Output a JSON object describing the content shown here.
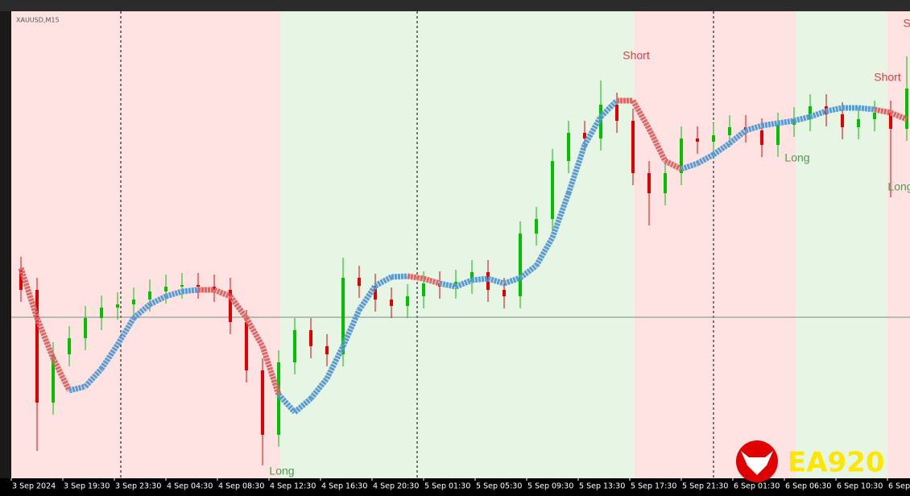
{
  "chart_data": {
    "type": "candlestick",
    "symbol": "XAUUSD,M15",
    "logo": "EA920",
    "xlim": [
      0,
      279
    ],
    "ylim": [
      0,
      116
    ],
    "xticks": [
      {
        "value": 0,
        "label": "3 Sep 2024"
      },
      {
        "value": 16,
        "label": "3 Sep 19:30"
      },
      {
        "value": 32,
        "label": "3 Sep 23:30"
      },
      {
        "value": 48,
        "label": "4 Sep 04:30"
      },
      {
        "value": 64,
        "label": "4 Sep 08:30"
      },
      {
        "value": 80,
        "label": "4 Sep 12:30"
      },
      {
        "value": 96,
        "label": "4 Sep 16:30"
      },
      {
        "value": 112,
        "label": "4 Sep 20:30"
      },
      {
        "value": 128,
        "label": "5 Sep 01:30"
      },
      {
        "value": 144,
        "label": "5 Sep 05:30"
      },
      {
        "value": 160,
        "label": "5 Sep 09:30"
      },
      {
        "value": 176,
        "label": "5 Sep 13:30"
      },
      {
        "value": 192,
        "label": "5 Sep 17:30"
      },
      {
        "value": 208,
        "label": "5 Sep 21:30"
      },
      {
        "value": 224,
        "label": "6 Sep 01:30"
      },
      {
        "value": 240,
        "label": "6 Sep 06:30"
      },
      {
        "value": 256,
        "label": "6 Sep 10:30"
      },
      {
        "value": 272,
        "label": "6 Sep"
      }
    ],
    "separators": [
      34,
      126,
      218
    ],
    "hline": 40,
    "zones": [
      {
        "from": 0,
        "to": 83.5,
        "color": "#ffe3e3"
      },
      {
        "from": 83.5,
        "to": 193.5,
        "color": "#e6f5e4"
      },
      {
        "from": 193.5,
        "to": 243.5,
        "color": "#ffe3e3"
      },
      {
        "from": 243.5,
        "to": 272,
        "color": "#e6f5e4"
      },
      {
        "from": 272,
        "to": 279,
        "color": "#ffe3e3"
      }
    ],
    "up_color": "#00c000",
    "down_color": "#e00000",
    "x": [
      3,
      8,
      13,
      18,
      23,
      28,
      33,
      38,
      43,
      48,
      53,
      58,
      63,
      68,
      73,
      78,
      83,
      88,
      93,
      98,
      103,
      108,
      113,
      118,
      123,
      128,
      133,
      138,
      143,
      148,
      153,
      158,
      163,
      168,
      173,
      178,
      183,
      188,
      193,
      198,
      203,
      208,
      213,
      218,
      223,
      228,
      233,
      238,
      243,
      248,
      253,
      258,
      263,
      268,
      273,
      278
    ],
    "open": [
      52,
      46.8,
      18.8,
      30.8,
      34.8,
      39.8,
      42.4,
      43.2,
      44.4,
      46.4,
      47.6,
      48,
      47.6,
      46.8,
      38.8,
      26.8,
      10.8,
      28.8,
      36.8,
      32.8,
      30.8,
      49.8,
      47.8,
      44.4,
      42.8,
      45.2,
      48.4,
      47.6,
      48.8,
      51.2,
      46.8,
      45.2,
      60.8,
      64.4,
      78.8,
      85.8,
      84.4,
      92.8,
      88.8,
      75.8,
      70.8,
      75.8,
      84.4,
      83.6,
      85.2,
      87.2,
      86.4,
      82.8,
      87.8,
      89.2,
      92.4,
      90.4,
      87.2,
      89.2,
      90.8,
      86.8
    ],
    "high": [
      55,
      49.8,
      33.8,
      37.8,
      42.8,
      45.4,
      46.2,
      47.4,
      49.4,
      50.6,
      51,
      51,
      50.6,
      49.8,
      41.8,
      29.8,
      31.8,
      39.8,
      39.8,
      35.8,
      54.8,
      52.8,
      50.8,
      47.4,
      48.2,
      51.4,
      51.4,
      51.8,
      54.2,
      54.2,
      49.8,
      63.8,
      67.4,
      81.8,
      88.8,
      88.8,
      98.8,
      95.8,
      91.8,
      78.8,
      78.8,
      87.4,
      87.4,
      88.2,
      90.2,
      90.2,
      89.4,
      90.8,
      92.2,
      95.4,
      95.4,
      93.4,
      92.2,
      93.8,
      93.8,
      104.8
    ],
    "low": [
      43.8,
      6.8,
      15.8,
      27.8,
      31.8,
      36.8,
      39.4,
      40.2,
      41.4,
      43.4,
      44.6,
      44.6,
      43.8,
      35.8,
      23.8,
      3.2,
      7.8,
      25.8,
      29.8,
      27.8,
      27.8,
      44.8,
      41.4,
      39.8,
      39.8,
      42.2,
      44.6,
      44.6,
      45.8,
      43.8,
      42.2,
      42.2,
      57.8,
      61.4,
      75.8,
      81.4,
      81.4,
      85.8,
      72.8,
      62.8,
      67.8,
      72.8,
      80.6,
      80.6,
      82.2,
      83.4,
      79.8,
      79.8,
      84.8,
      86.2,
      87.4,
      84.2,
      84.2,
      86.2,
      69.8,
      83.8
    ],
    "close": [
      46.8,
      18.8,
      30.8,
      34.8,
      39.8,
      42.4,
      43.2,
      44.4,
      46.4,
      47.6,
      48,
      47.6,
      46.8,
      38.8,
      26.8,
      10.8,
      28.8,
      36.8,
      32.8,
      30.8,
      49.8,
      47.8,
      44.4,
      42.8,
      45.2,
      48.4,
      47.6,
      48.8,
      51.2,
      46.8,
      45.2,
      60.8,
      64.4,
      78.8,
      85.8,
      84.4,
      92.8,
      88.8,
      75.8,
      70.8,
      75.8,
      84.4,
      83.6,
      85.2,
      87.2,
      86.4,
      82.8,
      87.8,
      89.2,
      92.4,
      90.4,
      87.2,
      89.2,
      90.8,
      86.8,
      96.8
    ],
    "trend": {
      "values": [
        52.2,
        39.8,
        29.8,
        21.8,
        22.8,
        27.2,
        33.2,
        39.8,
        43.2,
        45.2,
        46.4,
        46.8,
        46.8,
        45.2,
        39.8,
        32.8,
        20.8,
        16.4,
        19.8,
        24.8,
        32.8,
        41.8,
        47.8,
        50,
        50.2,
        49.6,
        48.4,
        47.6,
        49.2,
        49.6,
        48.4,
        49.8,
        52.8,
        59.8,
        70.8,
        82.8,
        89.8,
        93.8,
        93.8,
        86.8,
        78.8,
        76.8,
        78.2,
        80.4,
        83.2,
        86.4,
        87.6,
        88.2,
        88.8,
        89.8,
        91.2,
        92,
        92,
        91.6,
        90.8,
        89.2
      ],
      "colors": [
        "#e06666",
        "#e06666",
        "#e06666",
        "#e06666",
        "#5b9bd5",
        "#5b9bd5",
        "#5b9bd5",
        "#5b9bd5",
        "#5b9bd5",
        "#5b9bd5",
        "#5b9bd5",
        "#5b9bd5",
        "#e06666",
        "#e06666",
        "#e06666",
        "#e06666",
        "#e06666",
        "#5b9bd5",
        "#5b9bd5",
        "#5b9bd5",
        "#5b9bd5",
        "#5b9bd5",
        "#5b9bd5",
        "#5b9bd5",
        "#5b9bd5",
        "#e06666",
        "#e06666",
        "#5b9bd5",
        "#5b9bd5",
        "#5b9bd5",
        "#5b9bd5",
        "#5b9bd5",
        "#5b9bd5",
        "#5b9bd5",
        "#5b9bd5",
        "#5b9bd5",
        "#5b9bd5",
        "#5b9bd5",
        "#e06666",
        "#e06666",
        "#e06666",
        "#e06666",
        "#5b9bd5",
        "#5b9bd5",
        "#5b9bd5",
        "#5b9bd5",
        "#5b9bd5",
        "#5b9bd5",
        "#5b9bd5",
        "#5b9bd5",
        "#5b9bd5",
        "#5b9bd5",
        "#5b9bd5",
        "#5b9bd5",
        "#e06666",
        "#e06666"
      ]
    },
    "signals": [
      {
        "text": "Long",
        "x": 84,
        "y": 1.6,
        "color": "#4e9a4e"
      },
      {
        "text": "Short",
        "x": 194,
        "y": 104.8,
        "color": "#e04040"
      },
      {
        "text": "Long",
        "x": 244,
        "y": 79.4,
        "color": "#4e9a4e"
      },
      {
        "text": "Short",
        "x": 272,
        "y": 99.4,
        "color": "#e04040"
      },
      {
        "text": "Long",
        "x": 276,
        "y": 72.2,
        "color": "#4e9a4e"
      },
      {
        "text": "Sh",
        "x": 279,
        "y": 112.8,
        "color": "#e04040"
      }
    ]
  }
}
